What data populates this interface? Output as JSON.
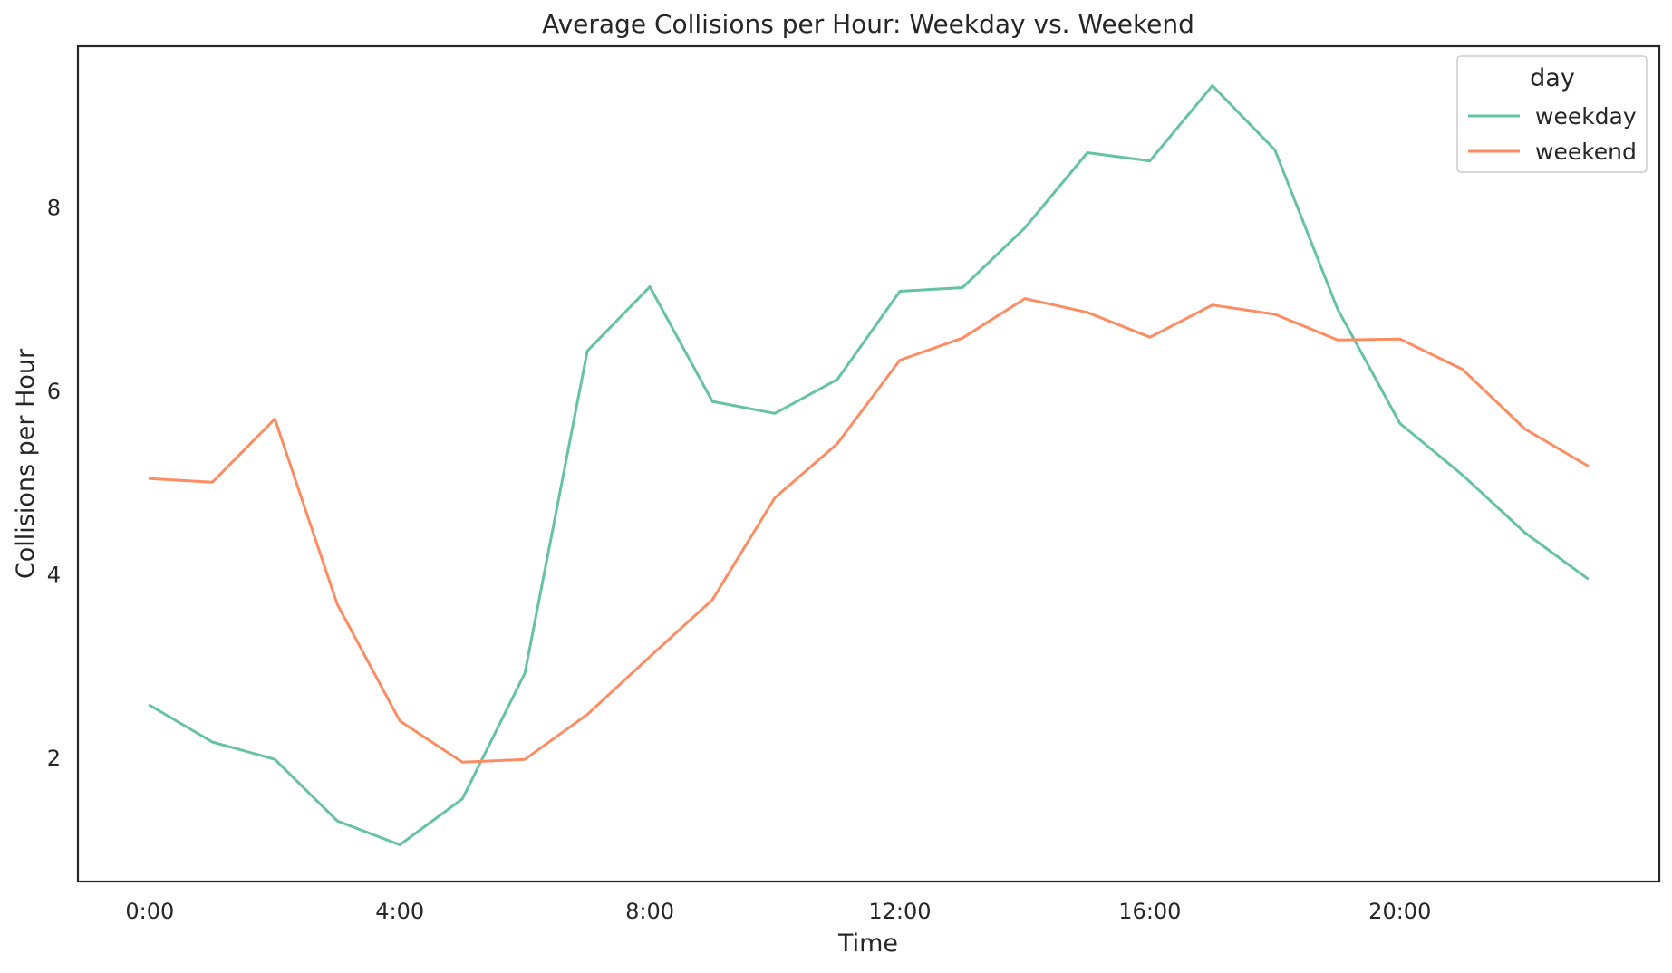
{
  "chart_data": {
    "type": "line",
    "title": "Average Collisions per Hour: Weekday vs. Weekend",
    "xlabel": "Time",
    "ylabel": "Collisions per Hour",
    "x": [
      0,
      1,
      2,
      3,
      4,
      5,
      6,
      7,
      8,
      9,
      10,
      11,
      12,
      13,
      14,
      15,
      16,
      17,
      18,
      19,
      20,
      21,
      22,
      23
    ],
    "xticks": [
      {
        "value": 0,
        "label": "0:00"
      },
      {
        "value": 4,
        "label": "4:00"
      },
      {
        "value": 8,
        "label": "8:00"
      },
      {
        "value": 12,
        "label": "12:00"
      },
      {
        "value": 16,
        "label": "16:00"
      },
      {
        "value": 20,
        "label": "20:00"
      }
    ],
    "yticks": [
      {
        "value": 2,
        "label": "2"
      },
      {
        "value": 4,
        "label": "4"
      },
      {
        "value": 6,
        "label": "6"
      },
      {
        "value": 8,
        "label": "8"
      }
    ],
    "xlim": [
      -1.15,
      24.15
    ],
    "ylim": [
      0.65,
      9.75
    ],
    "grid": false,
    "legend": {
      "title": "day",
      "placement": "top-right"
    },
    "series": [
      {
        "name": "weekday",
        "color": "#66c2a5",
        "values": [
          2.57,
          2.17,
          1.98,
          1.31,
          1.05,
          1.55,
          2.92,
          6.43,
          7.13,
          5.88,
          5.75,
          6.12,
          7.08,
          7.12,
          7.77,
          8.59,
          8.5,
          9.32,
          8.62,
          6.89,
          5.64,
          5.08,
          4.45,
          3.95
        ]
      },
      {
        "name": "weekend",
        "color": "#fc8d62",
        "values": [
          5.04,
          5.0,
          5.69,
          3.67,
          2.4,
          1.95,
          1.98,
          2.47,
          3.1,
          3.72,
          4.83,
          5.42,
          6.33,
          6.57,
          7.0,
          6.85,
          6.58,
          6.93,
          6.83,
          6.55,
          6.56,
          6.23,
          5.58,
          5.18
        ]
      }
    ]
  }
}
